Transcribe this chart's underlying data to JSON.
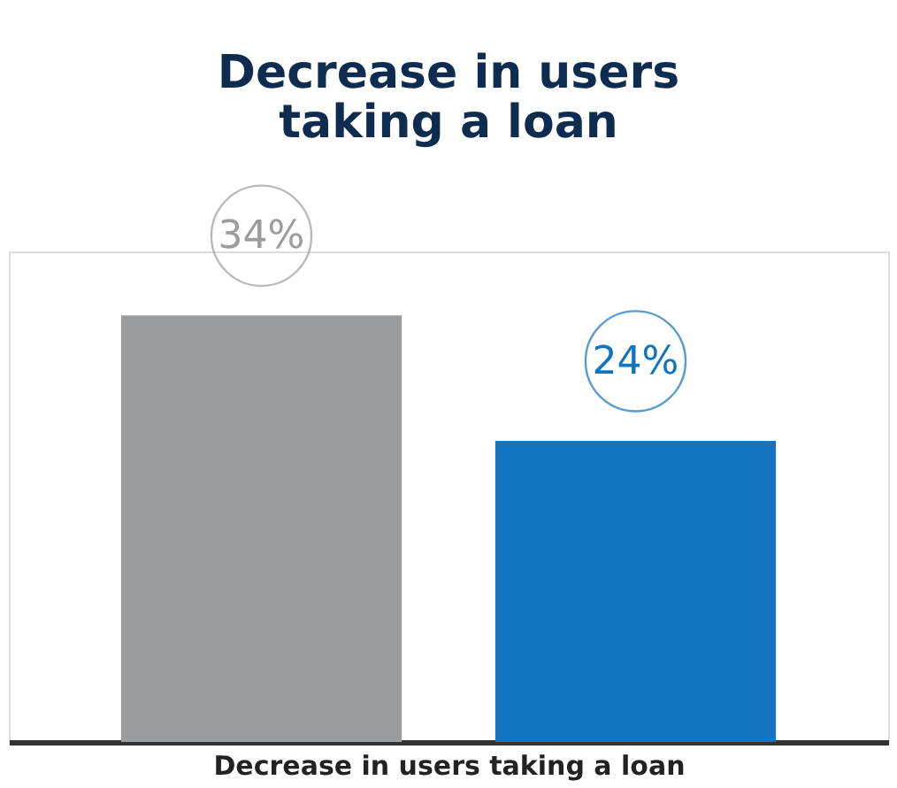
{
  "chart_data": {
    "type": "bar",
    "title": "Decrease in users taking a loan",
    "xlabel": "Decrease in users taking a loan",
    "categories": [
      null,
      null
    ],
    "values": [
      34,
      24
    ],
    "colors": [
      "#9b9c9e",
      "#1273bf"
    ],
    "value_labels": [
      "34%",
      "24%"
    ]
  }
}
